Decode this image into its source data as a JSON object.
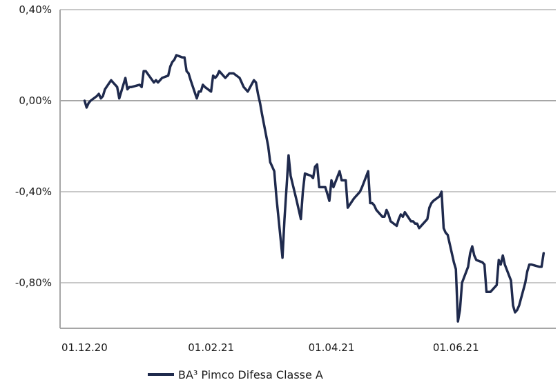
{
  "chart_data": {
    "type": "line",
    "title": "",
    "xlabel": "",
    "ylabel": "",
    "ylim": [
      -1.0,
      0.4
    ],
    "y_ticks": [
      {
        "value": 0.4,
        "label": "0,40%"
      },
      {
        "value": 0.0,
        "label": "0,00%"
      },
      {
        "value": -0.4,
        "label": "-0,40%"
      },
      {
        "value": -0.8,
        "label": "-0,80%"
      }
    ],
    "x_ticks": [
      {
        "date": "2020-12-01",
        "label": "01.12.20"
      },
      {
        "date": "2021-02-01",
        "label": "01.02.21"
      },
      {
        "date": "2021-04-01",
        "label": "01.04.21"
      },
      {
        "date": "2021-06-01",
        "label": "01.06.21"
      }
    ],
    "xlim": [
      "2020-11-19",
      "2021-07-20"
    ],
    "grid": "horizontal",
    "legend_position": "bottom-left",
    "colors": {
      "series": "#1f2a4d",
      "grid": "#a6a6a6",
      "axis": "#a6a6a6"
    },
    "series": [
      {
        "name": "BA³ Pimco Difesa Classe A",
        "points": [
          [
            "2020-12-01",
            0.0
          ],
          [
            "2020-12-02",
            -0.03
          ],
          [
            "2020-12-03",
            -0.01
          ],
          [
            "2020-12-04",
            0.0
          ],
          [
            "2020-12-07",
            0.02
          ],
          [
            "2020-12-08",
            0.03
          ],
          [
            "2020-12-09",
            0.01
          ],
          [
            "2020-12-10",
            0.02
          ],
          [
            "2020-12-11",
            0.05
          ],
          [
            "2020-12-14",
            0.09
          ],
          [
            "2020-12-15",
            0.08
          ],
          [
            "2020-12-16",
            0.07
          ],
          [
            "2020-12-17",
            0.06
          ],
          [
            "2020-12-18",
            0.01
          ],
          [
            "2020-12-21",
            0.1
          ],
          [
            "2020-12-22",
            0.05
          ],
          [
            "2020-12-23",
            0.06
          ],
          [
            "2020-12-24",
            0.06
          ],
          [
            "2020-12-28",
            0.07
          ],
          [
            "2020-12-29",
            0.06
          ],
          [
            "2020-12-30",
            0.13
          ],
          [
            "2020-12-31",
            0.13
          ],
          [
            "2021-01-04",
            0.08
          ],
          [
            "2021-01-05",
            0.09
          ],
          [
            "2021-01-06",
            0.08
          ],
          [
            "2021-01-07",
            0.09
          ],
          [
            "2021-01-08",
            0.1
          ],
          [
            "2021-01-11",
            0.11
          ],
          [
            "2021-01-12",
            0.15
          ],
          [
            "2021-01-13",
            0.17
          ],
          [
            "2021-01-14",
            0.18
          ],
          [
            "2021-01-15",
            0.2
          ],
          [
            "2021-01-18",
            0.19
          ],
          [
            "2021-01-19",
            0.19
          ],
          [
            "2021-01-20",
            0.13
          ],
          [
            "2021-01-21",
            0.12
          ],
          [
            "2021-01-22",
            0.09
          ],
          [
            "2021-01-25",
            0.01
          ],
          [
            "2021-01-26",
            0.04
          ],
          [
            "2021-01-27",
            0.04
          ],
          [
            "2021-01-28",
            0.07
          ],
          [
            "2021-01-29",
            0.06
          ],
          [
            "2021-02-01",
            0.04
          ],
          [
            "2021-02-02",
            0.11
          ],
          [
            "2021-02-03",
            0.1
          ],
          [
            "2021-02-04",
            0.11
          ],
          [
            "2021-02-05",
            0.13
          ],
          [
            "2021-02-08",
            0.1
          ],
          [
            "2021-02-09",
            0.11
          ],
          [
            "2021-02-10",
            0.12
          ],
          [
            "2021-02-11",
            0.12
          ],
          [
            "2021-02-12",
            0.12
          ],
          [
            "2021-02-15",
            0.1
          ],
          [
            "2021-02-16",
            0.08
          ],
          [
            "2021-02-17",
            0.06
          ],
          [
            "2021-02-18",
            0.05
          ],
          [
            "2021-02-19",
            0.04
          ],
          [
            "2021-02-22",
            0.09
          ],
          [
            "2021-02-23",
            0.08
          ],
          [
            "2021-02-24",
            0.03
          ],
          [
            "2021-02-25",
            -0.01
          ],
          [
            "2021-02-26",
            -0.06
          ],
          [
            "2021-03-01",
            -0.2
          ],
          [
            "2021-03-02",
            -0.27
          ],
          [
            "2021-03-03",
            -0.29
          ],
          [
            "2021-03-04",
            -0.31
          ],
          [
            "2021-03-05",
            -0.42
          ],
          [
            "2021-03-08",
            -0.69
          ],
          [
            "2021-03-09",
            -0.52
          ],
          [
            "2021-03-10",
            -0.38
          ],
          [
            "2021-03-11",
            -0.24
          ],
          [
            "2021-03-12",
            -0.33
          ],
          [
            "2021-03-15",
            -0.44
          ],
          [
            "2021-03-16",
            -0.48
          ],
          [
            "2021-03-17",
            -0.52
          ],
          [
            "2021-03-18",
            -0.4
          ],
          [
            "2021-03-19",
            -0.32
          ],
          [
            "2021-03-22",
            -0.33
          ],
          [
            "2021-03-23",
            -0.34
          ],
          [
            "2021-03-24",
            -0.29
          ],
          [
            "2021-03-25",
            -0.28
          ],
          [
            "2021-03-26",
            -0.38
          ],
          [
            "2021-03-29",
            -0.38
          ],
          [
            "2021-03-30",
            -0.41
          ],
          [
            "2021-03-31",
            -0.44
          ],
          [
            "2021-04-01",
            -0.35
          ],
          [
            "2021-04-02",
            -0.38
          ],
          [
            "2021-04-05",
            -0.31
          ],
          [
            "2021-04-06",
            -0.35
          ],
          [
            "2021-04-07",
            -0.35
          ],
          [
            "2021-04-08",
            -0.35
          ],
          [
            "2021-04-09",
            -0.47
          ],
          [
            "2021-04-12",
            -0.43
          ],
          [
            "2021-04-13",
            -0.42
          ],
          [
            "2021-04-14",
            -0.41
          ],
          [
            "2021-04-15",
            -0.4
          ],
          [
            "2021-04-16",
            -0.38
          ],
          [
            "2021-04-19",
            -0.31
          ],
          [
            "2021-04-20",
            -0.45
          ],
          [
            "2021-04-21",
            -0.45
          ],
          [
            "2021-04-22",
            -0.46
          ],
          [
            "2021-04-23",
            -0.48
          ],
          [
            "2021-04-26",
            -0.51
          ],
          [
            "2021-04-27",
            -0.51
          ],
          [
            "2021-04-28",
            -0.48
          ],
          [
            "2021-04-29",
            -0.5
          ],
          [
            "2021-04-30",
            -0.53
          ],
          [
            "2021-05-03",
            -0.55
          ],
          [
            "2021-05-04",
            -0.52
          ],
          [
            "2021-05-05",
            -0.5
          ],
          [
            "2021-05-06",
            -0.51
          ],
          [
            "2021-05-07",
            -0.49
          ],
          [
            "2021-05-10",
            -0.53
          ],
          [
            "2021-05-11",
            -0.53
          ],
          [
            "2021-05-12",
            -0.54
          ],
          [
            "2021-05-13",
            -0.54
          ],
          [
            "2021-05-14",
            -0.56
          ],
          [
            "2021-05-17",
            -0.53
          ],
          [
            "2021-05-18",
            -0.52
          ],
          [
            "2021-05-19",
            -0.47
          ],
          [
            "2021-05-20",
            -0.45
          ],
          [
            "2021-05-21",
            -0.44
          ],
          [
            "2021-05-24",
            -0.42
          ],
          [
            "2021-05-25",
            -0.4
          ],
          [
            "2021-05-26",
            -0.56
          ],
          [
            "2021-05-27",
            -0.58
          ],
          [
            "2021-05-28",
            -0.59
          ],
          [
            "2021-05-31",
            -0.71
          ],
          [
            "2021-06-01",
            -0.74
          ],
          [
            "2021-06-02",
            -0.97
          ],
          [
            "2021-06-03",
            -0.92
          ],
          [
            "2021-06-04",
            -0.8
          ],
          [
            "2021-06-07",
            -0.73
          ],
          [
            "2021-06-08",
            -0.67
          ],
          [
            "2021-06-09",
            -0.64
          ],
          [
            "2021-06-10",
            -0.68
          ],
          [
            "2021-06-11",
            -0.7
          ],
          [
            "2021-06-14",
            -0.71
          ],
          [
            "2021-06-15",
            -0.72
          ],
          [
            "2021-06-16",
            -0.84
          ],
          [
            "2021-06-17",
            -0.84
          ],
          [
            "2021-06-18",
            -0.84
          ],
          [
            "2021-06-21",
            -0.81
          ],
          [
            "2021-06-22",
            -0.7
          ],
          [
            "2021-06-23",
            -0.72
          ],
          [
            "2021-06-24",
            -0.68
          ],
          [
            "2021-06-25",
            -0.72
          ],
          [
            "2021-06-28",
            -0.79
          ],
          [
            "2021-06-29",
            -0.9
          ],
          [
            "2021-06-30",
            -0.93
          ],
          [
            "2021-07-01",
            -0.92
          ],
          [
            "2021-07-02",
            -0.9
          ],
          [
            "2021-07-05",
            -0.8
          ],
          [
            "2021-07-06",
            -0.75
          ],
          [
            "2021-07-07",
            -0.72
          ],
          [
            "2021-07-08",
            -0.72
          ],
          [
            "2021-07-12",
            -0.73
          ],
          [
            "2021-07-13",
            -0.73
          ],
          [
            "2021-07-14",
            -0.67
          ]
        ]
      }
    ]
  }
}
